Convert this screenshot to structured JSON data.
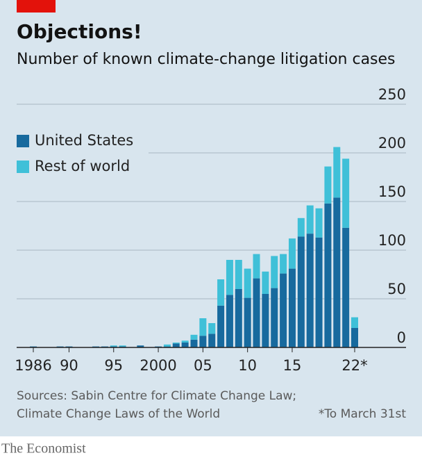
{
  "chart_data": {
    "type": "bar",
    "stacked": true,
    "title": "Objections!",
    "subtitle": "Number of known climate-change litigation cases",
    "categories": [
      "1986",
      null,
      null,
      null,
      "90",
      null,
      null,
      null,
      null,
      "95",
      null,
      null,
      null,
      null,
      "2000",
      null,
      null,
      null,
      null,
      "05",
      null,
      null,
      null,
      null,
      "10",
      null,
      null,
      null,
      null,
      "15",
      null,
      null,
      null,
      null,
      null,
      null,
      "22*"
    ],
    "series": [
      {
        "name": "United States",
        "color": "#176a9e",
        "values": [
          1,
          0,
          0,
          1,
          1,
          0,
          0,
          1,
          1,
          1,
          1,
          0,
          2,
          0,
          1,
          1,
          4,
          5,
          8,
          12,
          14,
          43,
          54,
          60,
          51,
          71,
          55,
          61,
          76,
          81,
          114,
          117,
          113,
          148,
          154,
          123,
          20
        ]
      },
      {
        "name": "Rest of world",
        "color": "#3fc0d8",
        "values": [
          0,
          0,
          0,
          0,
          0,
          0,
          0,
          0,
          0,
          1,
          1,
          0,
          0,
          0,
          0,
          2,
          1,
          2,
          5,
          18,
          11,
          27,
          36,
          30,
          30,
          25,
          23,
          33,
          20,
          31,
          19,
          29,
          30,
          38,
          52,
          71,
          11
        ]
      }
    ],
    "ylim": [
      0,
      250
    ],
    "yticks": [
      0,
      50,
      100,
      150,
      200,
      250
    ],
    "grid": true,
    "legend": "upper left",
    "source": [
      "Sources: Sabin Centre for Climate Change Law;",
      "Climate Change Laws of the World"
    ],
    "note": "*To March 31st",
    "brand": "The Economist"
  }
}
